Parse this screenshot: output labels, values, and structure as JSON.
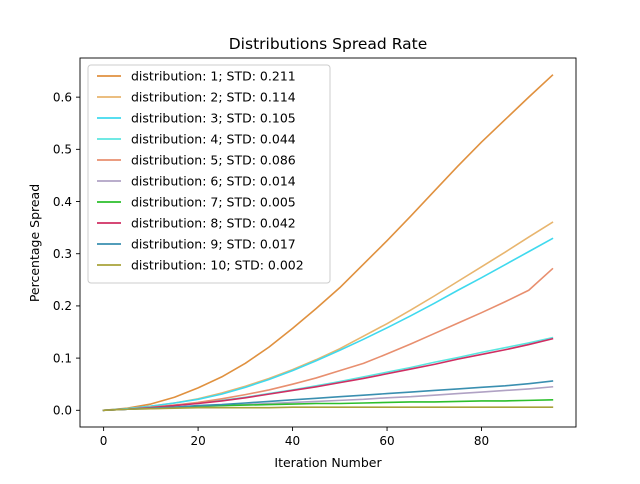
{
  "chart_data": {
    "type": "line",
    "title": "Distributions Spread Rate",
    "xlabel": "Iteration Number",
    "ylabel": "Percentage Spread",
    "xlim": [
      -5,
      100
    ],
    "ylim": [
      -0.032,
      0.675
    ],
    "xticks": [
      0,
      20,
      40,
      60,
      80
    ],
    "yticks": [
      0.0,
      0.1,
      0.2,
      0.3,
      0.4,
      0.5,
      0.6
    ],
    "ytick_labels": [
      "0.0",
      "0.1",
      "0.2",
      "0.3",
      "0.4",
      "0.5",
      "0.6"
    ],
    "grid": false,
    "legend_position": "top-left",
    "x": [
      0,
      5,
      10,
      15,
      20,
      25,
      30,
      35,
      40,
      45,
      50,
      55,
      60,
      65,
      70,
      75,
      80,
      85,
      90,
      95
    ],
    "series": [
      {
        "name": "distribution: 1; STD: 0.211",
        "color": "#e0913f",
        "values": [
          0.0,
          0.004,
          0.012,
          0.025,
          0.043,
          0.064,
          0.09,
          0.121,
          0.157,
          0.195,
          0.235,
          0.28,
          0.325,
          0.372,
          0.42,
          0.468,
          0.514,
          0.557,
          0.6,
          0.642
        ]
      },
      {
        "name": "distribution: 2; STD: 0.114",
        "color": "#e8b56e",
        "values": [
          0.0,
          0.003,
          0.008,
          0.014,
          0.022,
          0.033,
          0.046,
          0.061,
          0.078,
          0.097,
          0.118,
          0.142,
          0.166,
          0.192,
          0.219,
          0.247,
          0.275,
          0.303,
          0.332,
          0.36
        ]
      },
      {
        "name": "distribution: 3; STD: 0.105",
        "color": "#3fd9ee",
        "values": [
          0.0,
          0.003,
          0.008,
          0.014,
          0.021,
          0.031,
          0.044,
          0.059,
          0.076,
          0.095,
          0.115,
          0.136,
          0.158,
          0.181,
          0.205,
          0.23,
          0.254,
          0.279,
          0.304,
          0.329
        ]
      },
      {
        "name": "distribution: 4; STD: 0.044",
        "color": "#5be6e0",
        "values": [
          0.0,
          0.002,
          0.005,
          0.009,
          0.014,
          0.019,
          0.025,
          0.032,
          0.039,
          0.047,
          0.055,
          0.064,
          0.073,
          0.082,
          0.092,
          0.101,
          0.111,
          0.12,
          0.129,
          0.139
        ]
      },
      {
        "name": "distribution: 5; STD: 0.086",
        "color": "#e88f6f",
        "values": [
          0.0,
          0.002,
          0.006,
          0.01,
          0.015,
          0.022,
          0.03,
          0.039,
          0.05,
          0.062,
          0.076,
          0.09,
          0.108,
          0.127,
          0.147,
          0.167,
          0.187,
          0.208,
          0.23,
          0.271
        ]
      },
      {
        "name": "distribution: 6; STD: 0.014",
        "color": "#b0a2c4",
        "values": [
          0.0,
          0.002,
          0.003,
          0.005,
          0.007,
          0.009,
          0.011,
          0.013,
          0.015,
          0.017,
          0.019,
          0.021,
          0.024,
          0.026,
          0.029,
          0.032,
          0.035,
          0.038,
          0.041,
          0.045
        ]
      },
      {
        "name": "distribution: 7; STD: 0.005",
        "color": "#2cbf2c",
        "values": [
          0.0,
          0.002,
          0.004,
          0.006,
          0.008,
          0.009,
          0.01,
          0.011,
          0.012,
          0.013,
          0.013,
          0.014,
          0.015,
          0.016,
          0.016,
          0.017,
          0.018,
          0.018,
          0.019,
          0.02
        ]
      },
      {
        "name": "distribution: 8; STD: 0.042",
        "color": "#d02e62",
        "values": [
          0.0,
          0.002,
          0.005,
          0.009,
          0.013,
          0.018,
          0.024,
          0.031,
          0.038,
          0.045,
          0.053,
          0.061,
          0.07,
          0.079,
          0.088,
          0.098,
          0.107,
          0.116,
          0.126,
          0.137
        ]
      },
      {
        "name": "distribution: 9; STD: 0.017",
        "color": "#3a8fb0",
        "values": [
          0.0,
          0.002,
          0.004,
          0.006,
          0.009,
          0.011,
          0.014,
          0.017,
          0.02,
          0.023,
          0.026,
          0.029,
          0.032,
          0.035,
          0.038,
          0.041,
          0.044,
          0.047,
          0.051,
          0.056
        ]
      },
      {
        "name": "distribution: 10; STD: 0.002",
        "color": "#a8a23a",
        "values": [
          0.0,
          0.002,
          0.003,
          0.004,
          0.005,
          0.005,
          0.005,
          0.005,
          0.006,
          0.006,
          0.006,
          0.006,
          0.006,
          0.006,
          0.006,
          0.006,
          0.006,
          0.006,
          0.006,
          0.006
        ]
      }
    ]
  }
}
